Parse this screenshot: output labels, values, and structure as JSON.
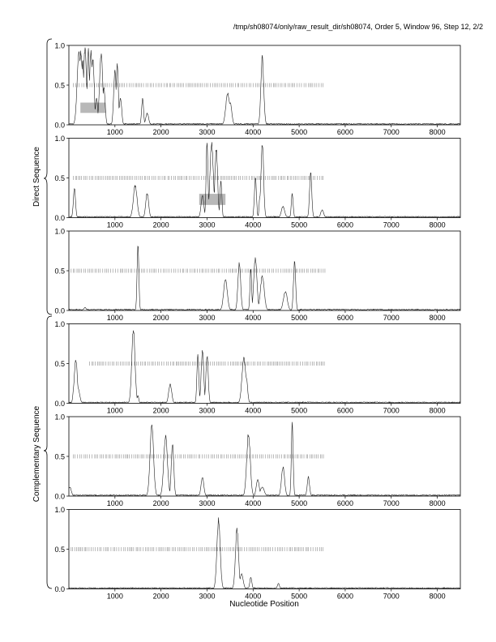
{
  "header": {
    "title": "/tmp/sh08074/only/raw_result_dir/sh08074, Order 5, Window 96, Step 12, 2/2"
  },
  "figure": {
    "xlabel": "Nucleotide Position",
    "group_labels": [
      "Direct Sequence",
      "Complementary Sequence"
    ]
  },
  "chart_data": {
    "type": "line",
    "x_range": [
      0,
      8500
    ],
    "y_range": [
      0,
      1.0
    ],
    "x_ticks": [
      1000,
      2000,
      3000,
      4000,
      5000,
      6000,
      7000,
      8000
    ],
    "y_ticks": [
      "0.0",
      "0.5",
      "1.0"
    ],
    "grid": false,
    "panels": [
      {
        "group": "Direct Sequence",
        "peaks": [
          [
            220,
            0.95
          ],
          [
            260,
            0.98
          ],
          [
            300,
            0.9
          ],
          [
            350,
            1.0
          ],
          [
            420,
            1.0
          ],
          [
            480,
            0.95
          ],
          [
            520,
            0.85
          ],
          [
            600,
            0.35
          ],
          [
            700,
            0.92
          ],
          [
            760,
            0.5
          ],
          [
            1000,
            0.72
          ],
          [
            1050,
            0.78
          ],
          [
            1120,
            0.35
          ],
          [
            1600,
            0.35
          ],
          [
            1700,
            0.15
          ],
          [
            3450,
            0.42
          ],
          [
            3500,
            0.3
          ],
          [
            4200,
            0.88
          ]
        ],
        "highlight": [
          250,
          800,
          0.15,
          0.28
        ],
        "tick_row": [
          100,
          5550
        ]
      },
      {
        "group": "Direct Sequence",
        "peaks": [
          [
            120,
            0.38
          ],
          [
            1440,
            0.42
          ],
          [
            1700,
            0.32
          ],
          [
            2900,
            0.3
          ],
          [
            3000,
            1.0
          ],
          [
            3100,
            0.98
          ],
          [
            3200,
            0.9
          ],
          [
            3300,
            0.5
          ],
          [
            4050,
            0.52
          ],
          [
            4150,
            0.3
          ],
          [
            4200,
            1.0
          ],
          [
            4650,
            0.15
          ],
          [
            4850,
            0.32
          ],
          [
            5250,
            0.58
          ],
          [
            5500,
            0.1
          ]
        ],
        "highlight": [
          2830,
          3400,
          0.16,
          0.3
        ],
        "tick_row": [
          100,
          5550
        ]
      },
      {
        "group": "Direct Sequence",
        "peaks": [
          [
            350,
            0.04
          ],
          [
            1500,
            0.85
          ],
          [
            3400,
            0.4
          ],
          [
            3700,
            0.62
          ],
          [
            3950,
            0.55
          ],
          [
            4050,
            0.7
          ],
          [
            4200,
            0.45
          ],
          [
            4700,
            0.25
          ],
          [
            4900,
            0.65
          ]
        ],
        "tick_row": [
          50,
          5600
        ]
      },
      {
        "group": "Complementary Sequence",
        "peaks": [
          [
            120,
            0.28
          ],
          [
            150,
            0.58
          ],
          [
            200,
            0.2
          ],
          [
            1400,
            0.99
          ],
          [
            1500,
            0.1
          ],
          [
            2200,
            0.25
          ],
          [
            2800,
            0.62
          ],
          [
            2900,
            0.7
          ],
          [
            3000,
            0.62
          ],
          [
            3800,
            0.6
          ],
          [
            3850,
            0.35
          ]
        ],
        "tick_row": [
          450,
          5550
        ]
      },
      {
        "group": "Complementary Sequence",
        "peaks": [
          [
            20,
            0.12
          ],
          [
            1800,
            0.93
          ],
          [
            2100,
            0.8
          ],
          [
            2250,
            0.7
          ],
          [
            2900,
            0.25
          ],
          [
            3900,
            0.82
          ],
          [
            4100,
            0.22
          ],
          [
            4200,
            0.12
          ],
          [
            4650,
            0.38
          ],
          [
            4850,
            0.95
          ],
          [
            5200,
            0.25
          ]
        ],
        "tick_row": [
          100,
          5550
        ]
      },
      {
        "group": "Complementary Sequence",
        "peaks": [
          [
            3250,
            0.9
          ],
          [
            3650,
            0.78
          ],
          [
            3750,
            0.2
          ],
          [
            3950,
            0.15
          ],
          [
            4550,
            0.07
          ]
        ],
        "tick_row": [
          50,
          5550
        ]
      }
    ]
  }
}
